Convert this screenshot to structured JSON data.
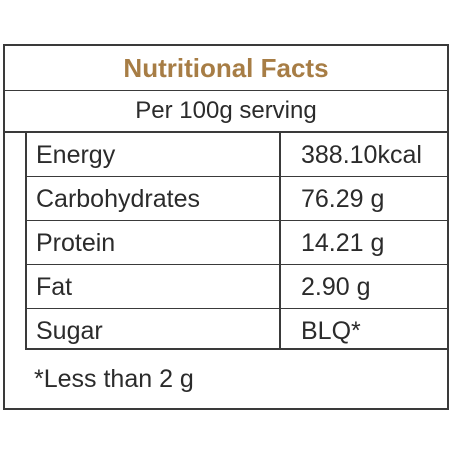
{
  "title": "Nutritional Facts",
  "subtitle": "Per 100g serving",
  "rows": [
    {
      "label": "Energy",
      "value": "388.10kcal"
    },
    {
      "label": "Carbohydrates",
      "value": "76.29 g"
    },
    {
      "label": "Protein",
      "value": "14.21 g"
    },
    {
      "label": "Fat",
      "value": "2.90 g"
    },
    {
      "label": "Sugar",
      "value": "BLQ*"
    }
  ],
  "footnote": "*Less than 2 g",
  "colors": {
    "title": "#a77d45",
    "text": "#2b2b2b",
    "border": "#3a3a3a"
  }
}
